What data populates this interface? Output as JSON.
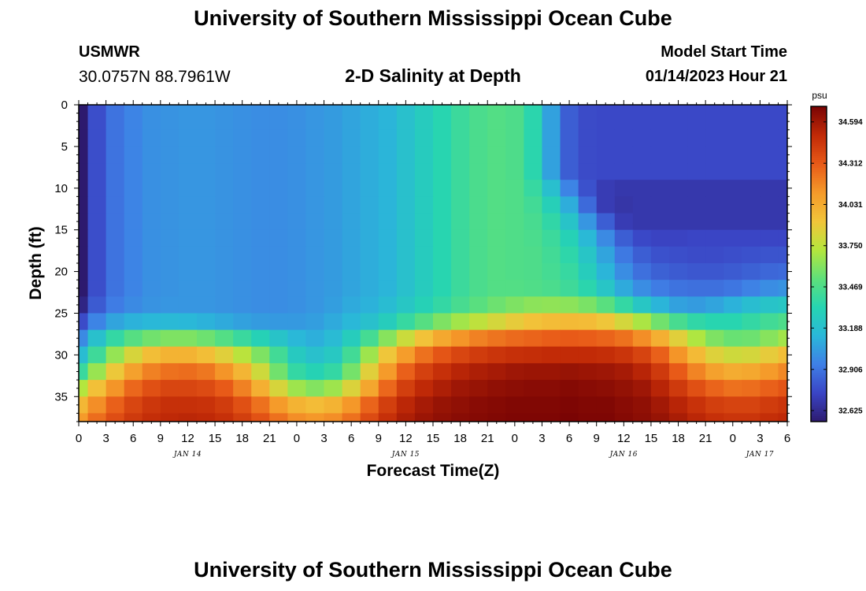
{
  "header": {
    "title": "University of Southern Mississippi Ocean Cube",
    "station": "USMWR",
    "coordinates": "30.0757N  88.7961W",
    "plot_title": "2-D Salinity at Depth",
    "model_start_label": "Model Start Time",
    "model_start_value": "01/14/2023 Hour 21"
  },
  "footer": {
    "title": "University of Southern Mississippi Ocean Cube"
  },
  "chart_data": {
    "type": "heatmap",
    "title": "2-D Salinity at Depth",
    "xlabel": "Forecast Time(Z)",
    "ylabel": "Depth (ft)",
    "x_range_hours": [
      0,
      78
    ],
    "x_ticks": [
      "0",
      "3",
      "6",
      "9",
      "12",
      "15",
      "18",
      "21",
      "0",
      "3",
      "6",
      "9",
      "12",
      "15",
      "18",
      "21",
      "0",
      "3",
      "6",
      "9",
      "12",
      "15",
      "18",
      "21",
      "0",
      "3",
      "6"
    ],
    "x_date_labels": [
      {
        "label": "JAN 14",
        "hour": 12
      },
      {
        "label": "JAN 15",
        "hour": 36
      },
      {
        "label": "JAN 16",
        "hour": 60
      },
      {
        "label": "JAN 17",
        "hour": 75
      }
    ],
    "y_range": [
      0,
      38
    ],
    "y_inverted": true,
    "y_ticks": [
      0,
      5,
      10,
      15,
      20,
      25,
      30,
      35
    ],
    "colorbar": {
      "unit": "psu",
      "min": 32.55,
      "max": 34.7,
      "tick_labels": [
        "34.594",
        "34.312",
        "34.031",
        "33.750",
        "33.469",
        "33.188",
        "32.906",
        "32.625"
      ],
      "tick_values": [
        34.594,
        34.312,
        34.031,
        33.75,
        33.469,
        33.188,
        32.906,
        32.625
      ],
      "colors": [
        "#2d1a6e",
        "#3a44c4",
        "#3f7fe6",
        "#2ab7d9",
        "#26d4b2",
        "#5ee07a",
        "#b5e63d",
        "#f2c53a",
        "#f59a2a",
        "#e85a18",
        "#c12a07",
        "#7a0404"
      ]
    },
    "grid": {
      "x_hours": [
        0,
        2,
        4,
        6,
        8,
        10,
        12,
        14,
        16,
        18,
        20,
        22,
        24,
        26,
        28,
        30,
        32,
        34,
        36,
        38,
        40,
        42,
        44,
        46,
        48,
        50,
        52,
        54,
        56,
        58,
        60,
        62,
        64,
        66,
        68,
        70,
        72,
        74,
        76,
        78
      ],
      "depth_ft": [
        0,
        2,
        4,
        6,
        8,
        10,
        12,
        14,
        16,
        18,
        20,
        22,
        24,
        26,
        28,
        30,
        32,
        34,
        36,
        38
      ],
      "salinity_psu_rows": [
        [
          32.55,
          32.78,
          32.9,
          32.96,
          33.0,
          33.01,
          33.02,
          33.02,
          33.01,
          33.0,
          32.99,
          32.99,
          33.0,
          33.02,
          33.04,
          33.07,
          33.1,
          33.13,
          33.2,
          33.27,
          33.34,
          33.41,
          33.46,
          33.49,
          33.47,
          33.35,
          33.06,
          32.83,
          32.77,
          32.76,
          32.76,
          32.76,
          32.76,
          32.76,
          32.76,
          32.76,
          32.76,
          32.76,
          32.76,
          32.76
        ],
        [
          32.55,
          32.78,
          32.9,
          32.96,
          33.0,
          33.01,
          33.02,
          33.02,
          33.01,
          33.0,
          32.99,
          32.99,
          33.0,
          33.02,
          33.04,
          33.07,
          33.1,
          33.13,
          33.2,
          33.27,
          33.34,
          33.41,
          33.46,
          33.49,
          33.47,
          33.35,
          33.06,
          32.83,
          32.77,
          32.76,
          32.76,
          32.76,
          32.76,
          32.76,
          32.76,
          32.76,
          32.76,
          32.76,
          32.76,
          32.76
        ],
        [
          32.55,
          32.78,
          32.9,
          32.96,
          33.0,
          33.01,
          33.02,
          33.02,
          33.01,
          33.0,
          32.99,
          32.99,
          33.0,
          33.02,
          33.04,
          33.07,
          33.1,
          33.13,
          33.2,
          33.27,
          33.34,
          33.41,
          33.46,
          33.49,
          33.47,
          33.35,
          33.06,
          32.83,
          32.77,
          32.76,
          32.76,
          32.76,
          32.76,
          32.76,
          32.76,
          32.76,
          32.76,
          32.76,
          32.76,
          32.76
        ],
        [
          32.55,
          32.78,
          32.9,
          32.96,
          33.0,
          33.01,
          33.02,
          33.02,
          33.01,
          33.0,
          32.99,
          32.99,
          33.0,
          33.02,
          33.04,
          33.07,
          33.1,
          33.13,
          33.2,
          33.27,
          33.34,
          33.41,
          33.46,
          33.49,
          33.47,
          33.35,
          33.06,
          32.83,
          32.77,
          32.76,
          32.76,
          32.76,
          32.76,
          32.76,
          32.76,
          32.76,
          32.76,
          32.76,
          32.76,
          32.76
        ],
        [
          32.55,
          32.78,
          32.9,
          32.96,
          33.0,
          33.01,
          33.02,
          33.02,
          33.01,
          33.0,
          32.99,
          32.99,
          33.0,
          33.02,
          33.04,
          33.07,
          33.1,
          33.13,
          33.2,
          33.27,
          33.34,
          33.41,
          33.46,
          33.49,
          33.47,
          33.35,
          33.06,
          32.83,
          32.77,
          32.76,
          32.76,
          32.76,
          32.76,
          32.76,
          32.76,
          32.76,
          32.76,
          32.76,
          32.76,
          32.76
        ],
        [
          32.55,
          32.78,
          32.9,
          32.96,
          33.0,
          33.01,
          33.02,
          33.02,
          33.01,
          33.0,
          32.99,
          32.99,
          33.0,
          33.02,
          33.04,
          33.07,
          33.1,
          33.13,
          33.2,
          33.27,
          33.34,
          33.41,
          33.46,
          33.49,
          33.48,
          33.39,
          33.19,
          32.96,
          32.79,
          32.71,
          32.69,
          32.69,
          32.69,
          32.69,
          32.69,
          32.69,
          32.69,
          32.69,
          32.69,
          32.69
        ],
        [
          32.55,
          32.78,
          32.9,
          32.96,
          33.0,
          33.01,
          33.02,
          33.02,
          33.01,
          33.0,
          32.99,
          32.99,
          33.0,
          33.02,
          33.04,
          33.07,
          33.1,
          33.13,
          33.2,
          33.27,
          33.34,
          33.41,
          33.46,
          33.49,
          33.48,
          33.43,
          33.3,
          33.1,
          32.87,
          32.71,
          32.68,
          32.69,
          32.69,
          32.69,
          32.69,
          32.69,
          32.69,
          32.69,
          32.69,
          32.69
        ],
        [
          32.55,
          32.78,
          32.9,
          32.96,
          33.0,
          33.01,
          33.02,
          33.02,
          33.01,
          33.0,
          32.99,
          32.99,
          33.0,
          33.02,
          33.04,
          33.07,
          33.1,
          33.13,
          33.2,
          33.27,
          33.34,
          33.41,
          33.46,
          33.49,
          33.48,
          33.45,
          33.37,
          33.22,
          33.02,
          32.83,
          32.71,
          32.69,
          32.69,
          32.69,
          32.69,
          32.69,
          32.69,
          32.69,
          32.69,
          32.69
        ],
        [
          32.55,
          32.78,
          32.9,
          32.96,
          33.0,
          33.01,
          33.02,
          33.02,
          33.01,
          33.0,
          32.99,
          32.99,
          33.0,
          33.02,
          33.04,
          33.07,
          33.1,
          33.13,
          33.2,
          33.27,
          33.34,
          33.41,
          33.46,
          33.49,
          33.48,
          33.46,
          33.41,
          33.31,
          33.15,
          32.98,
          32.83,
          32.76,
          32.74,
          32.74,
          32.75,
          32.75,
          32.75,
          32.75,
          32.75,
          32.75
        ],
        [
          32.55,
          32.78,
          32.9,
          32.96,
          33.0,
          33.01,
          33.02,
          33.02,
          33.01,
          33.0,
          32.99,
          32.99,
          33.0,
          33.02,
          33.04,
          33.07,
          33.1,
          33.13,
          33.2,
          33.27,
          33.34,
          33.41,
          33.46,
          33.49,
          33.48,
          33.47,
          33.43,
          33.36,
          33.23,
          33.07,
          32.92,
          32.83,
          32.79,
          32.78,
          32.77,
          32.77,
          32.78,
          32.79,
          32.8,
          32.8
        ],
        [
          32.55,
          32.78,
          32.9,
          32.96,
          33.0,
          33.01,
          33.02,
          33.02,
          33.01,
          33.0,
          32.99,
          32.99,
          33.0,
          33.02,
          33.04,
          33.07,
          33.1,
          33.13,
          33.2,
          33.27,
          33.34,
          33.41,
          33.46,
          33.49,
          33.48,
          33.47,
          33.44,
          33.39,
          33.28,
          33.13,
          32.99,
          32.89,
          32.84,
          32.82,
          32.81,
          32.81,
          32.82,
          32.84,
          32.86,
          32.87
        ],
        [
          32.55,
          32.78,
          32.9,
          32.96,
          33.0,
          33.01,
          33.02,
          33.02,
          33.01,
          33.0,
          32.99,
          32.99,
          33.0,
          33.02,
          33.04,
          33.07,
          33.1,
          33.13,
          33.2,
          33.27,
          33.34,
          33.41,
          33.46,
          33.49,
          33.49,
          33.48,
          33.46,
          33.42,
          33.35,
          33.23,
          33.09,
          32.99,
          32.93,
          32.9,
          32.89,
          32.89,
          32.91,
          32.95,
          32.99,
          33.01
        ],
        [
          32.6,
          32.82,
          32.93,
          32.98,
          33.01,
          33.02,
          33.02,
          33.02,
          33.01,
          33.0,
          32.99,
          32.99,
          33.0,
          33.02,
          33.05,
          33.09,
          33.12,
          33.17,
          33.24,
          33.31,
          33.38,
          33.45,
          33.51,
          33.56,
          33.6,
          33.63,
          33.64,
          33.63,
          33.59,
          33.51,
          33.38,
          33.24,
          33.13,
          33.06,
          33.04,
          33.07,
          33.12,
          33.18,
          33.22,
          33.24
        ],
        [
          32.77,
          32.96,
          33.07,
          33.12,
          33.14,
          33.15,
          33.14,
          33.12,
          33.09,
          33.06,
          33.04,
          33.03,
          33.03,
          33.05,
          33.09,
          33.14,
          33.2,
          33.28,
          33.39,
          33.5,
          33.6,
          33.68,
          33.75,
          33.82,
          33.88,
          33.93,
          33.96,
          33.97,
          33.96,
          33.91,
          33.82,
          33.7,
          33.57,
          33.45,
          33.37,
          33.34,
          33.34,
          33.38,
          33.43,
          33.47
        ],
        [
          32.98,
          33.2,
          33.38,
          33.5,
          33.57,
          33.6,
          33.6,
          33.56,
          33.49,
          33.4,
          33.31,
          33.22,
          33.14,
          33.11,
          33.16,
          33.28,
          33.44,
          33.62,
          33.79,
          33.93,
          34.05,
          34.13,
          34.19,
          34.23,
          34.26,
          34.28,
          34.3,
          34.31,
          34.3,
          34.28,
          34.24,
          34.15,
          34.02,
          33.86,
          33.71,
          33.6,
          33.55,
          33.56,
          33.62,
          33.68
        ],
        [
          33.17,
          33.42,
          33.65,
          33.83,
          33.95,
          34.0,
          34.0,
          33.95,
          33.86,
          33.74,
          33.6,
          33.43,
          33.26,
          33.2,
          33.25,
          33.43,
          33.67,
          33.91,
          34.1,
          34.24,
          34.33,
          34.39,
          34.43,
          34.46,
          34.48,
          34.49,
          34.5,
          34.5,
          34.5,
          34.49,
          34.46,
          34.4,
          34.29,
          34.13,
          33.97,
          33.85,
          33.8,
          33.82,
          33.88,
          33.95
        ],
        [
          33.4,
          33.66,
          33.9,
          34.08,
          34.19,
          34.24,
          34.25,
          34.22,
          34.13,
          33.99,
          33.8,
          33.57,
          33.38,
          33.32,
          33.38,
          33.58,
          33.86,
          34.11,
          34.29,
          34.41,
          34.48,
          34.53,
          34.56,
          34.58,
          34.6,
          34.61,
          34.61,
          34.62,
          34.61,
          34.6,
          34.58,
          34.53,
          34.44,
          34.31,
          34.18,
          34.08,
          34.03,
          34.05,
          34.11,
          34.17
        ],
        [
          33.72,
          33.94,
          34.13,
          34.27,
          34.35,
          34.39,
          34.39,
          34.37,
          34.31,
          34.19,
          34.02,
          33.83,
          33.67,
          33.61,
          33.67,
          33.84,
          34.06,
          34.27,
          34.42,
          34.51,
          34.56,
          34.6,
          34.62,
          34.64,
          34.65,
          34.66,
          34.66,
          34.67,
          34.66,
          34.65,
          34.63,
          34.6,
          34.53,
          34.44,
          34.35,
          34.28,
          34.24,
          34.25,
          34.29,
          34.33
        ],
        [
          33.98,
          34.15,
          34.29,
          34.39,
          34.45,
          34.48,
          34.48,
          34.47,
          34.43,
          34.35,
          34.24,
          34.11,
          34.0,
          33.96,
          34.0,
          34.12,
          34.28,
          34.42,
          34.52,
          34.58,
          34.62,
          34.64,
          34.66,
          34.67,
          34.68,
          34.68,
          34.68,
          34.69,
          34.68,
          34.68,
          34.66,
          34.64,
          34.59,
          34.53,
          34.47,
          34.42,
          34.4,
          34.4,
          34.43,
          34.46
        ],
        [
          34.11,
          34.25,
          34.36,
          34.44,
          34.49,
          34.51,
          34.52,
          34.51,
          34.48,
          34.42,
          34.34,
          34.24,
          34.15,
          34.12,
          34.15,
          34.24,
          34.37,
          34.48,
          34.56,
          34.61,
          34.64,
          34.66,
          34.67,
          34.68,
          34.69,
          34.69,
          34.69,
          34.7,
          34.69,
          34.69,
          34.67,
          34.65,
          34.62,
          34.57,
          34.52,
          34.48,
          34.46,
          34.46,
          34.49,
          34.51
        ]
      ]
    }
  }
}
